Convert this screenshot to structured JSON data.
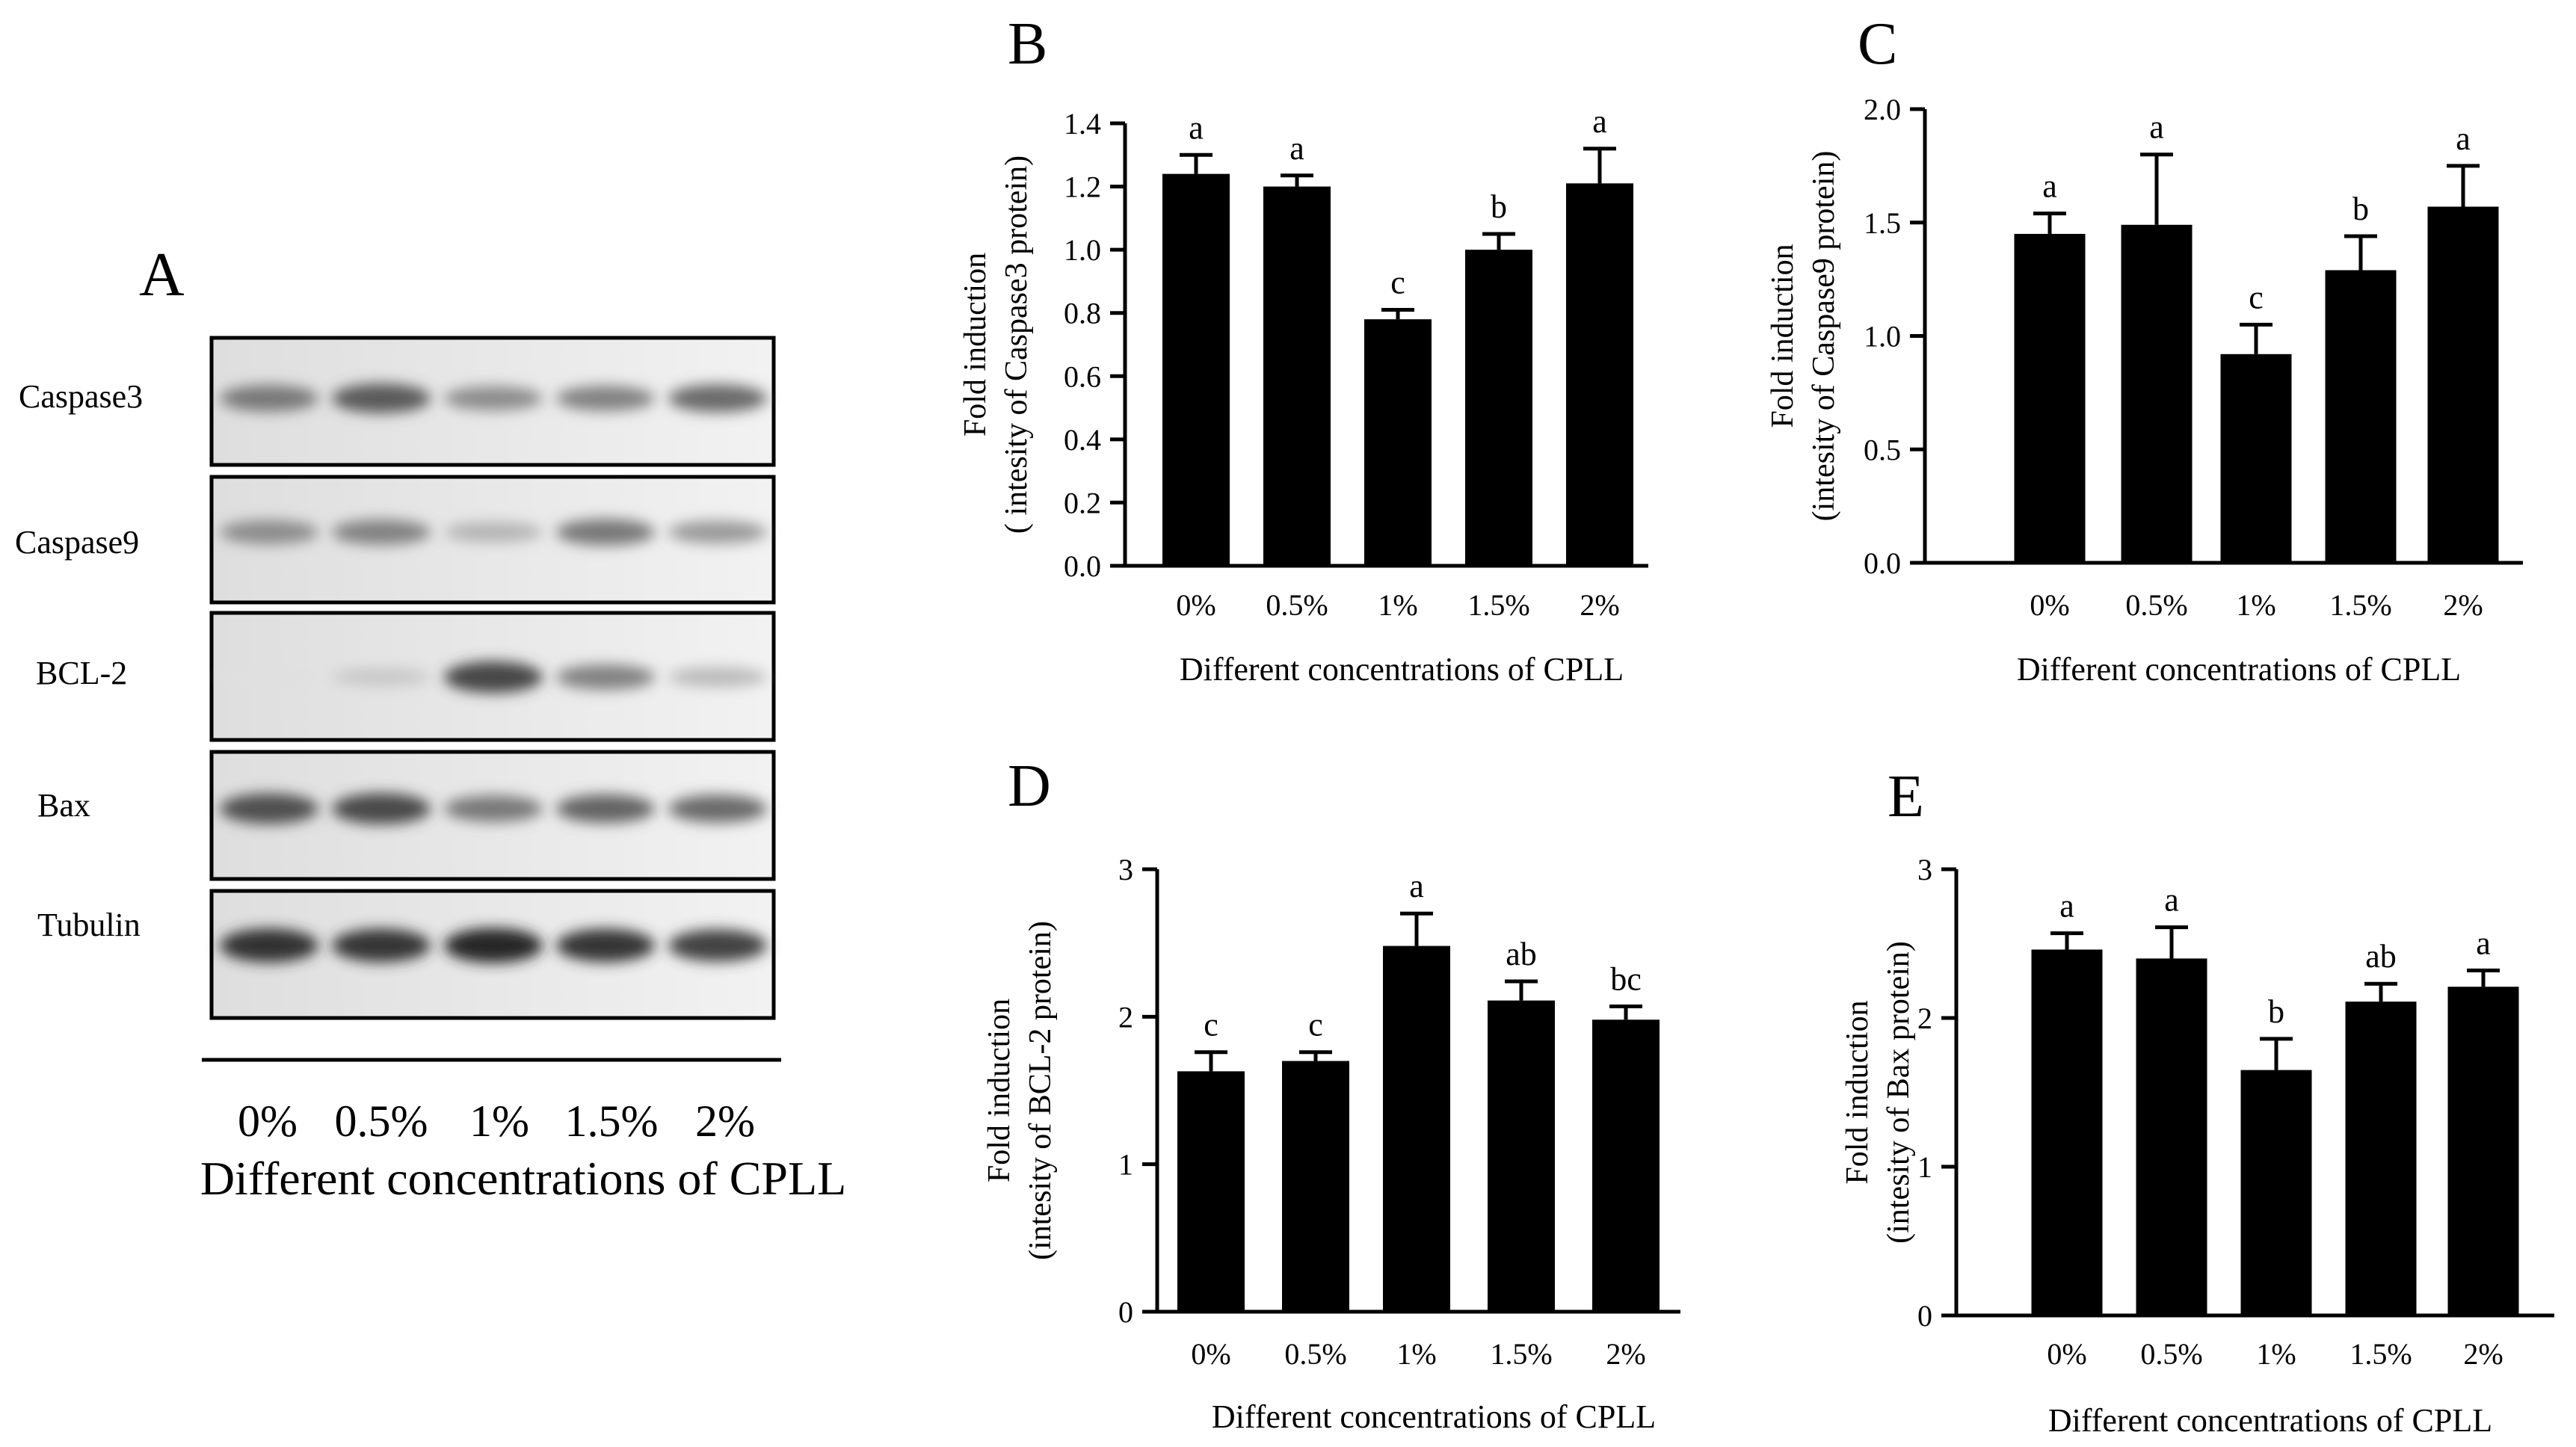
{
  "western_blot": {
    "panel_letter": "A",
    "bands": [
      {
        "label": "Caspase3",
        "intensities": [
          0.55,
          0.7,
          0.45,
          0.5,
          0.62
        ]
      },
      {
        "label": "Caspase9",
        "intensities": [
          0.45,
          0.5,
          0.25,
          0.55,
          0.38
        ]
      },
      {
        "label": "BCL-2",
        "intensities": [
          0.03,
          0.15,
          0.8,
          0.5,
          0.22
        ]
      },
      {
        "label": "Bax",
        "intensities": [
          0.75,
          0.78,
          0.55,
          0.65,
          0.62
        ]
      },
      {
        "label": "Tubulin",
        "intensities": [
          0.9,
          0.88,
          0.95,
          0.88,
          0.82
        ]
      }
    ],
    "lanes": [
      "0%",
      "0.5%",
      "1%",
      "1.5%",
      "2%"
    ],
    "xlabel": "Different concentrations of CPLL"
  },
  "chart_data": [
    {
      "panel_letter": "B",
      "type": "bar",
      "categories": [
        "0%",
        "0.5%",
        "1%",
        "1.5%",
        "2%"
      ],
      "values": [
        1.24,
        1.2,
        0.78,
        1.0,
        1.21
      ],
      "errors": [
        0.06,
        0.035,
        0.03,
        0.05,
        0.11
      ],
      "letters": [
        "a",
        "a",
        "c",
        "b",
        "a"
      ],
      "ylabel_lines": [
        "Fold induction",
        "( intesity of Caspase3 protein)"
      ],
      "xlabel": "Different concentrations of CPLL",
      "ylim": [
        0,
        1.4
      ],
      "yticks": [
        "0.0",
        "0.2",
        "0.4",
        "0.6",
        "0.8",
        "1.0",
        "1.2",
        "1.4"
      ]
    },
    {
      "panel_letter": "C",
      "type": "bar",
      "categories": [
        "0%",
        "0.5%",
        "1%",
        "1.5%",
        "2%"
      ],
      "values": [
        1.45,
        1.49,
        0.92,
        1.29,
        1.57
      ],
      "errors": [
        0.09,
        0.31,
        0.13,
        0.15,
        0.18
      ],
      "letters": [
        "a",
        "a",
        "c",
        "b",
        "a"
      ],
      "ylabel_lines": [
        "Fold induction",
        "(intesity of Caspase9 protein)"
      ],
      "xlabel": "Different concentrations of CPLL",
      "ylim": [
        0,
        2.0
      ],
      "yticks": [
        "0.0",
        "0.5",
        "1.0",
        "1.5",
        "2.0"
      ]
    },
    {
      "panel_letter": "D",
      "type": "bar",
      "categories": [
        "0%",
        "0.5%",
        "1%",
        "1.5%",
        "2%"
      ],
      "values": [
        1.63,
        1.7,
        2.48,
        2.11,
        1.98
      ],
      "errors": [
        0.13,
        0.06,
        0.22,
        0.13,
        0.09
      ],
      "letters": [
        "c",
        "c",
        "a",
        "ab",
        "bc"
      ],
      "ylabel_lines": [
        "Fold induction",
        "(intesity of BCL-2 protein)"
      ],
      "xlabel": "Different concentrations of CPLL",
      "ylim": [
        0,
        3
      ],
      "yticks": [
        "0",
        "1",
        "2",
        "3"
      ]
    },
    {
      "panel_letter": "E",
      "type": "bar",
      "categories": [
        "0%",
        "0.5%",
        "1%",
        "1.5%",
        "2%"
      ],
      "values": [
        2.46,
        2.4,
        1.65,
        2.11,
        2.21
      ],
      "errors": [
        0.11,
        0.21,
        0.21,
        0.12,
        0.11
      ],
      "letters": [
        "a",
        "a",
        "b",
        "ab",
        "a"
      ],
      "ylabel_lines": [
        "Fold induction",
        "(intesity of Bax protein)"
      ],
      "xlabel": "Different concentrations of CPLL",
      "ylim": [
        0,
        3
      ],
      "yticks": [
        "0",
        "1",
        "2",
        "3"
      ]
    }
  ]
}
